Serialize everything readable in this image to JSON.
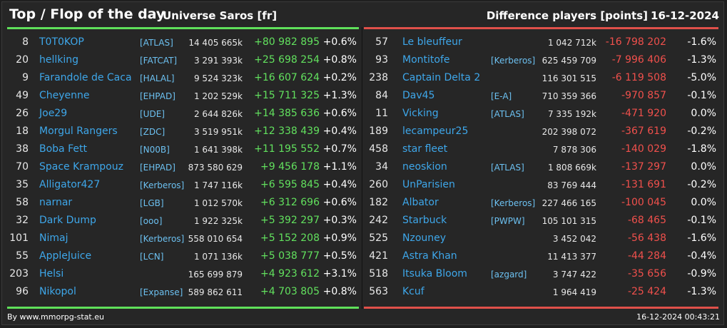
{
  "header": {
    "title": "Top / Flop of the day",
    "universe": "Universe Saros [fr]",
    "metric": "Difference players [points]",
    "date": "16-12-2024"
  },
  "top": [
    {
      "rank": "8",
      "name": "T0T0KOP",
      "guild": "[ATLAS]",
      "points": "14 405 665k",
      "diff": "+80 982 895",
      "pct": "+0.6%"
    },
    {
      "rank": "20",
      "name": "hellking",
      "guild": "[FATCAT]",
      "points": "3 291 393k",
      "diff": "+25 698 254",
      "pct": "+0.8%"
    },
    {
      "rank": "9",
      "name": "Farandole de Caca",
      "guild": "[HALAL]",
      "points": "9 524 323k",
      "diff": "+16 607 624",
      "pct": "+0.2%"
    },
    {
      "rank": "49",
      "name": "Cheyenne",
      "guild": "[EHPAD]",
      "points": "1 202 529k",
      "diff": "+15 711 325",
      "pct": "+1.3%"
    },
    {
      "rank": "26",
      "name": "Joe29",
      "guild": "[UDE]",
      "points": "2 644 826k",
      "diff": "+14 385 636",
      "pct": "+0.6%"
    },
    {
      "rank": "18",
      "name": "Morgul Rangers",
      "guild": "[ZDC]",
      "points": "3 519 951k",
      "diff": "+12 338 439",
      "pct": "+0.4%"
    },
    {
      "rank": "38",
      "name": "Boba Fett",
      "guild": "[N00B]",
      "points": "1 641 398k",
      "diff": "+11 195 552",
      "pct": "+0.7%"
    },
    {
      "rank": "70",
      "name": "Space Krampouz",
      "guild": "[EHPAD]",
      "points": "873 580 629",
      "diff": "+9 456 178",
      "pct": "+1.1%"
    },
    {
      "rank": "35",
      "name": "Alligator427",
      "guild": "[Kerberos]",
      "points": "1 747 116k",
      "diff": "+6 595 845",
      "pct": "+0.4%"
    },
    {
      "rank": "58",
      "name": "narnar",
      "guild": "[LGB]",
      "points": "1 012 570k",
      "diff": "+6 312 696",
      "pct": "+0.6%"
    },
    {
      "rank": "32",
      "name": "Dark Dump",
      "guild": "[ooo]",
      "points": "1 922 325k",
      "diff": "+5 392 297",
      "pct": "+0.3%"
    },
    {
      "rank": "101",
      "name": "Nimaj",
      "guild": "[Kerberos]",
      "points": "558 010 654",
      "diff": "+5 152 208",
      "pct": "+0.9%"
    },
    {
      "rank": "55",
      "name": "AppleJuice",
      "guild": "[LCN]",
      "points": "1 071 136k",
      "diff": "+5 038 777",
      "pct": "+0.5%"
    },
    {
      "rank": "203",
      "name": "Helsi",
      "guild": "",
      "points": "165 699 879",
      "diff": "+4 923 612",
      "pct": "+3.1%"
    },
    {
      "rank": "96",
      "name": "Nikopol",
      "guild": "[Expanse]",
      "points": "589 862 611",
      "diff": "+4 703 805",
      "pct": "+0.8%"
    }
  ],
  "flop": [
    {
      "rank": "57",
      "name": "Le bleuffeur",
      "guild": "",
      "points": "1 042 712k",
      "diff": "-16 798 202",
      "pct": "-1.6%"
    },
    {
      "rank": "93",
      "name": "Montitofe",
      "guild": "[Kerberos]",
      "points": "625 459 709",
      "diff": "-7 996 406",
      "pct": "-1.3%"
    },
    {
      "rank": "238",
      "name": "Captain Delta 2",
      "guild": "",
      "points": "116 301 515",
      "diff": "-6 119 508",
      "pct": "-5.0%"
    },
    {
      "rank": "84",
      "name": "Dav45",
      "guild": "[E-A]",
      "points": "710 359 366",
      "diff": "-970 857",
      "pct": "-0.1%"
    },
    {
      "rank": "11",
      "name": "Vicking",
      "guild": "[ATLAS]",
      "points": "7 335 192k",
      "diff": "-471 920",
      "pct": "0.0%"
    },
    {
      "rank": "189",
      "name": "lecampeur25",
      "guild": "",
      "points": "202 398 072",
      "diff": "-367 619",
      "pct": "-0.2%"
    },
    {
      "rank": "458",
      "name": "star fleet",
      "guild": "",
      "points": "7 878 306",
      "diff": "-140 029",
      "pct": "-1.8%"
    },
    {
      "rank": "34",
      "name": "neoskion",
      "guild": "[ATLAS]",
      "points": "1 808 669k",
      "diff": "-137 297",
      "pct": "0.0%"
    },
    {
      "rank": "260",
      "name": "UnParisien",
      "guild": "",
      "points": "83 769 444",
      "diff": "-131 691",
      "pct": "-0.2%"
    },
    {
      "rank": "182",
      "name": "Albator",
      "guild": "[Kerberos]",
      "points": "227 466 165",
      "diff": "-100 045",
      "pct": "0.0%"
    },
    {
      "rank": "242",
      "name": "Starbuck",
      "guild": "[PWPW]",
      "points": "105 101 315",
      "diff": "-68 465",
      "pct": "-0.1%"
    },
    {
      "rank": "525",
      "name": "Nzouney",
      "guild": "",
      "points": "3 452 042",
      "diff": "-56 438",
      "pct": "-1.6%"
    },
    {
      "rank": "421",
      "name": "Astra Khan",
      "guild": "",
      "points": "11 413 377",
      "diff": "-44 284",
      "pct": "-0.4%"
    },
    {
      "rank": "518",
      "name": "Itsuka Bloom",
      "guild": "[azgard]",
      "points": "3 747 422",
      "diff": "-35 656",
      "pct": "-0.9%"
    },
    {
      "rank": "563",
      "name": "Kcuf",
      "guild": "",
      "points": "1 964 419",
      "diff": "-25 424",
      "pct": "-1.3%"
    }
  ],
  "footer": {
    "source": "By www.mmorpg-stat.eu",
    "timestamp": "16-12-2024 00:43:21"
  },
  "colors": {
    "gain": "#62e15e",
    "loss": "#f0504c",
    "link": "#3ea7ea"
  }
}
